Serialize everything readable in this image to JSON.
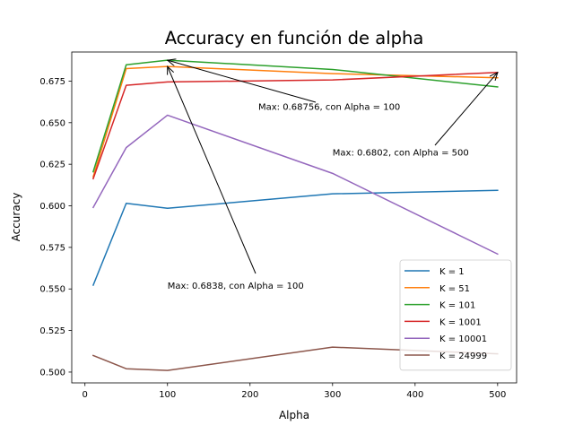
{
  "chart_data": {
    "type": "line",
    "title": "Accuracy en función de alpha",
    "xlabel": "Alpha",
    "ylabel": "Accuracy",
    "xlim": [
      -16,
      523
    ],
    "ylim": [
      0.4935,
      0.6925
    ],
    "xticks": [
      0,
      100,
      200,
      300,
      400,
      500
    ],
    "yticks": [
      0.5,
      0.525,
      0.55,
      0.575,
      0.6,
      0.625,
      0.65,
      0.675
    ],
    "ytick_labels": [
      "0.500",
      "0.525",
      "0.550",
      "0.575",
      "0.600",
      "0.625",
      "0.650",
      "0.675"
    ],
    "grid": false,
    "legend_position": "lower-right",
    "x": [
      10,
      50,
      100,
      300,
      500
    ],
    "series": [
      {
        "name": "K = 1",
        "color": "#1f77b4",
        "values": [
          0.5523,
          0.6015,
          0.5985,
          0.6072,
          0.6093
        ]
      },
      {
        "name": "K = 51",
        "color": "#ff7f0e",
        "values": [
          0.6175,
          0.6825,
          0.6838,
          0.6795,
          0.677
        ]
      },
      {
        "name": "K = 101",
        "color": "#2ca02c",
        "values": [
          0.6205,
          0.6848,
          0.6876,
          0.682,
          0.6715
        ]
      },
      {
        "name": "K = 1001",
        "color": "#d62728",
        "values": [
          0.6163,
          0.6725,
          0.6745,
          0.6757,
          0.6802
        ]
      },
      {
        "name": "K = 10001",
        "color": "#9467bd",
        "values": [
          0.599,
          0.635,
          0.6545,
          0.6195,
          0.571
        ]
      },
      {
        "name": "K = 24999",
        "color": "#8c564b",
        "values": [
          0.51,
          0.502,
          0.501,
          0.515,
          0.511
        ]
      }
    ],
    "annotations": [
      {
        "text": "Max: 0.68756, con Alpha = 100",
        "target": [
          100,
          0.68756
        ],
        "text_at": [
          210,
          0.6577
        ]
      },
      {
        "text": "Max: 0.6802, con Alpha = 500",
        "target": [
          500,
          0.6802
        ],
        "text_at": [
          300,
          0.6302
        ]
      },
      {
        "text": "Max: 0.6838, con Alpha = 100",
        "target": [
          100,
          0.6838
        ],
        "text_at": [
          100,
          0.5502
        ]
      }
    ]
  }
}
